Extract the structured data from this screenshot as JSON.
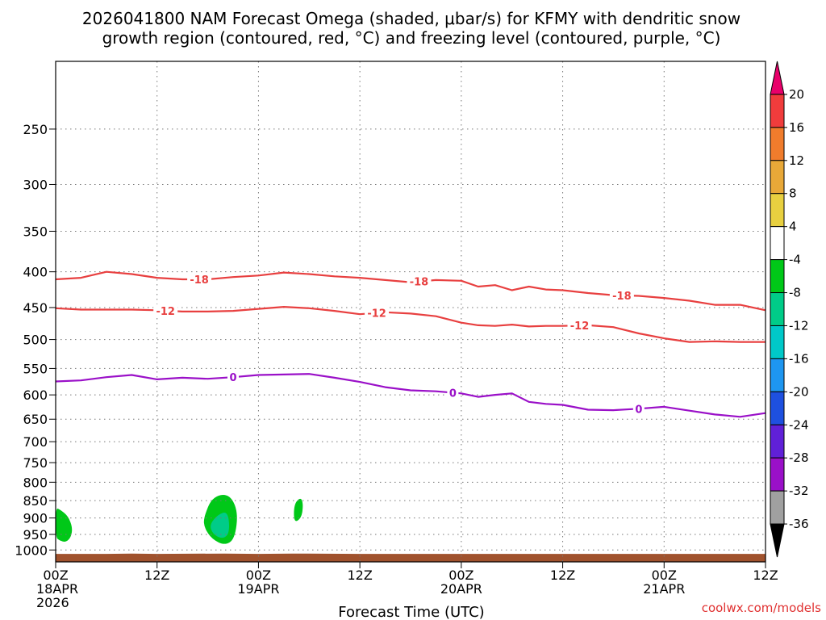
{
  "chart_data": {
    "type": "contour",
    "title_line1": "2026041800 NAM Forecast Omega (shaded, μbar/s) for KFMY with dendritic snow",
    "title_line2": "growth region (contoured, red, °C) and freezing level (contoured, purple, °C)",
    "xlabel": "Forecast Time (UTC)",
    "credit": "coolwx.com/models",
    "x_range_hours": [
      0,
      84
    ],
    "y_range_hPa": [
      200,
      1040
    ],
    "y_ticks": [
      250,
      300,
      350,
      400,
      450,
      500,
      550,
      600,
      650,
      700,
      750,
      800,
      850,
      900,
      950,
      1000
    ],
    "y_tick_labels": [
      "250",
      "300",
      "350",
      "400",
      "450",
      "500",
      "550",
      "600",
      "650",
      "700",
      "750",
      "800",
      "850",
      "900",
      "950",
      "1000"
    ],
    "x_ticks": [
      {
        "hour": 0,
        "line1": "00Z",
        "line2": "18APR",
        "line3": "2026"
      },
      {
        "hour": 12,
        "line1": "12Z",
        "line2": "",
        "line3": ""
      },
      {
        "hour": 24,
        "line1": "00Z",
        "line2": "19APR",
        "line3": ""
      },
      {
        "hour": 36,
        "line1": "12Z",
        "line2": "",
        "line3": ""
      },
      {
        "hour": 48,
        "line1": "00Z",
        "line2": "20APR",
        "line3": ""
      },
      {
        "hour": 60,
        "line1": "12Z",
        "line2": "",
        "line3": ""
      },
      {
        "hour": 72,
        "line1": "00Z",
        "line2": "21APR",
        "line3": ""
      },
      {
        "hour": 84,
        "line1": "12Z",
        "line2": "",
        "line3": ""
      }
    ],
    "contours": [
      {
        "name": "-18",
        "label": "-18",
        "color": "#e84040",
        "hours": [
          0,
          3,
          6,
          9,
          12,
          15,
          18,
          21,
          24,
          27,
          30,
          33,
          36,
          39,
          42,
          45,
          48,
          50,
          52,
          54,
          56,
          58,
          60,
          63,
          66,
          69,
          72,
          75,
          78,
          81,
          84
        ],
        "pressure": [
          410,
          408,
          400,
          403,
          408,
          410,
          410,
          407,
          405,
          401,
          403,
          406,
          408,
          411,
          414,
          411,
          412,
          420,
          418,
          425,
          420,
          424,
          425,
          429,
          432,
          433,
          436,
          440,
          446,
          446,
          454
        ],
        "label_at_hours": [
          17,
          43,
          67
        ]
      },
      {
        "name": "-12",
        "label": "-12",
        "color": "#e84040",
        "hours": [
          0,
          3,
          6,
          9,
          12,
          15,
          18,
          21,
          24,
          27,
          30,
          33,
          36,
          39,
          42,
          45,
          48,
          50,
          52,
          54,
          56,
          58,
          60,
          63,
          66,
          69,
          72,
          75,
          78,
          81,
          84
        ],
        "pressure": [
          451,
          453,
          453,
          453,
          454,
          456,
          456,
          455,
          452,
          449,
          451,
          455,
          460,
          457,
          459,
          463,
          473,
          477,
          478,
          476,
          479,
          478,
          478,
          477,
          480,
          490,
          498,
          504,
          503,
          504,
          504
        ],
        "label_at_hours": [
          13,
          38,
          62
        ]
      },
      {
        "name": "0",
        "label": "0",
        "color": "#9a10c8",
        "hours": [
          0,
          3,
          6,
          9,
          12,
          15,
          18,
          21,
          24,
          27,
          30,
          33,
          36,
          39,
          42,
          45,
          48,
          50,
          52,
          54,
          56,
          58,
          60,
          63,
          66,
          69,
          72,
          75,
          78,
          81,
          84
        ],
        "pressure": [
          574,
          572,
          566,
          562,
          570,
          567,
          569,
          566,
          562,
          561,
          560,
          567,
          575,
          585,
          591,
          593,
          597,
          604,
          600,
          597,
          614,
          618,
          620,
          630,
          631,
          628,
          624,
          632,
          640,
          645,
          637
        ],
        "label_at_hours": [
          21,
          47,
          69
        ]
      }
    ],
    "omega_regions": [
      {
        "name": "omega-region-1",
        "level": -8,
        "color": "#00c818",
        "x_hours": [
          0,
          0.5,
          1.5,
          2.0,
          1.8,
          1.2,
          0.5,
          0
        ],
        "pressure": [
          870,
          875,
          895,
          930,
          960,
          975,
          970,
          960
        ]
      },
      {
        "name": "omega-region-2",
        "level": -8,
        "color": "#00c818",
        "x_hours": [
          17.5,
          18.5,
          20.5,
          21.6,
          21.2,
          20.0,
          18.5,
          17.6
        ],
        "pressure": [
          900,
          840,
          830,
          880,
          965,
          985,
          965,
          930
        ]
      },
      {
        "name": "omega-region-2-inner",
        "level": -12,
        "color": "#00cc88",
        "x_hours": [
          18.2,
          19.2,
          20.4,
          20.6,
          19.8,
          18.6
        ],
        "pressure": [
          920,
          890,
          880,
          945,
          965,
          950
        ]
      },
      {
        "name": "omega-region-3",
        "level": -8,
        "color": "#00c818",
        "x_hours": [
          28.2,
          29.0,
          29.3,
          29.1,
          28.2
        ],
        "pressure": [
          860,
          840,
          860,
          900,
          915
        ]
      }
    ],
    "surface_pressure": [
      1013,
      1013,
      1012,
      1013,
      1012,
      1013,
      1012,
      1013,
      1013,
      1013,
      1013,
      1013,
      1013,
      1013,
      1013
    ],
    "surface_hours": [
      0,
      6,
      9,
      12,
      20,
      24,
      28,
      36,
      48,
      60,
      72,
      76,
      78,
      80,
      84
    ],
    "surface_color": "#a0522d",
    "colorbar": {
      "levels": [
        "20",
        "16",
        "12",
        "8",
        "4",
        "-4",
        "-8",
        "-12",
        "-16",
        "-20",
        "-24",
        "-28",
        "-32",
        "-36"
      ],
      "colors": [
        "#e8006a",
        "#f03c3c",
        "#f07c2c",
        "#e8a838",
        "#e8d040",
        "#ffffff",
        "#00c818",
        "#00cc88",
        "#00c8c8",
        "#1e96f0",
        "#1e50e0",
        "#6020d8",
        "#9a10c8",
        "#a0a0a0",
        "#000000"
      ]
    }
  }
}
